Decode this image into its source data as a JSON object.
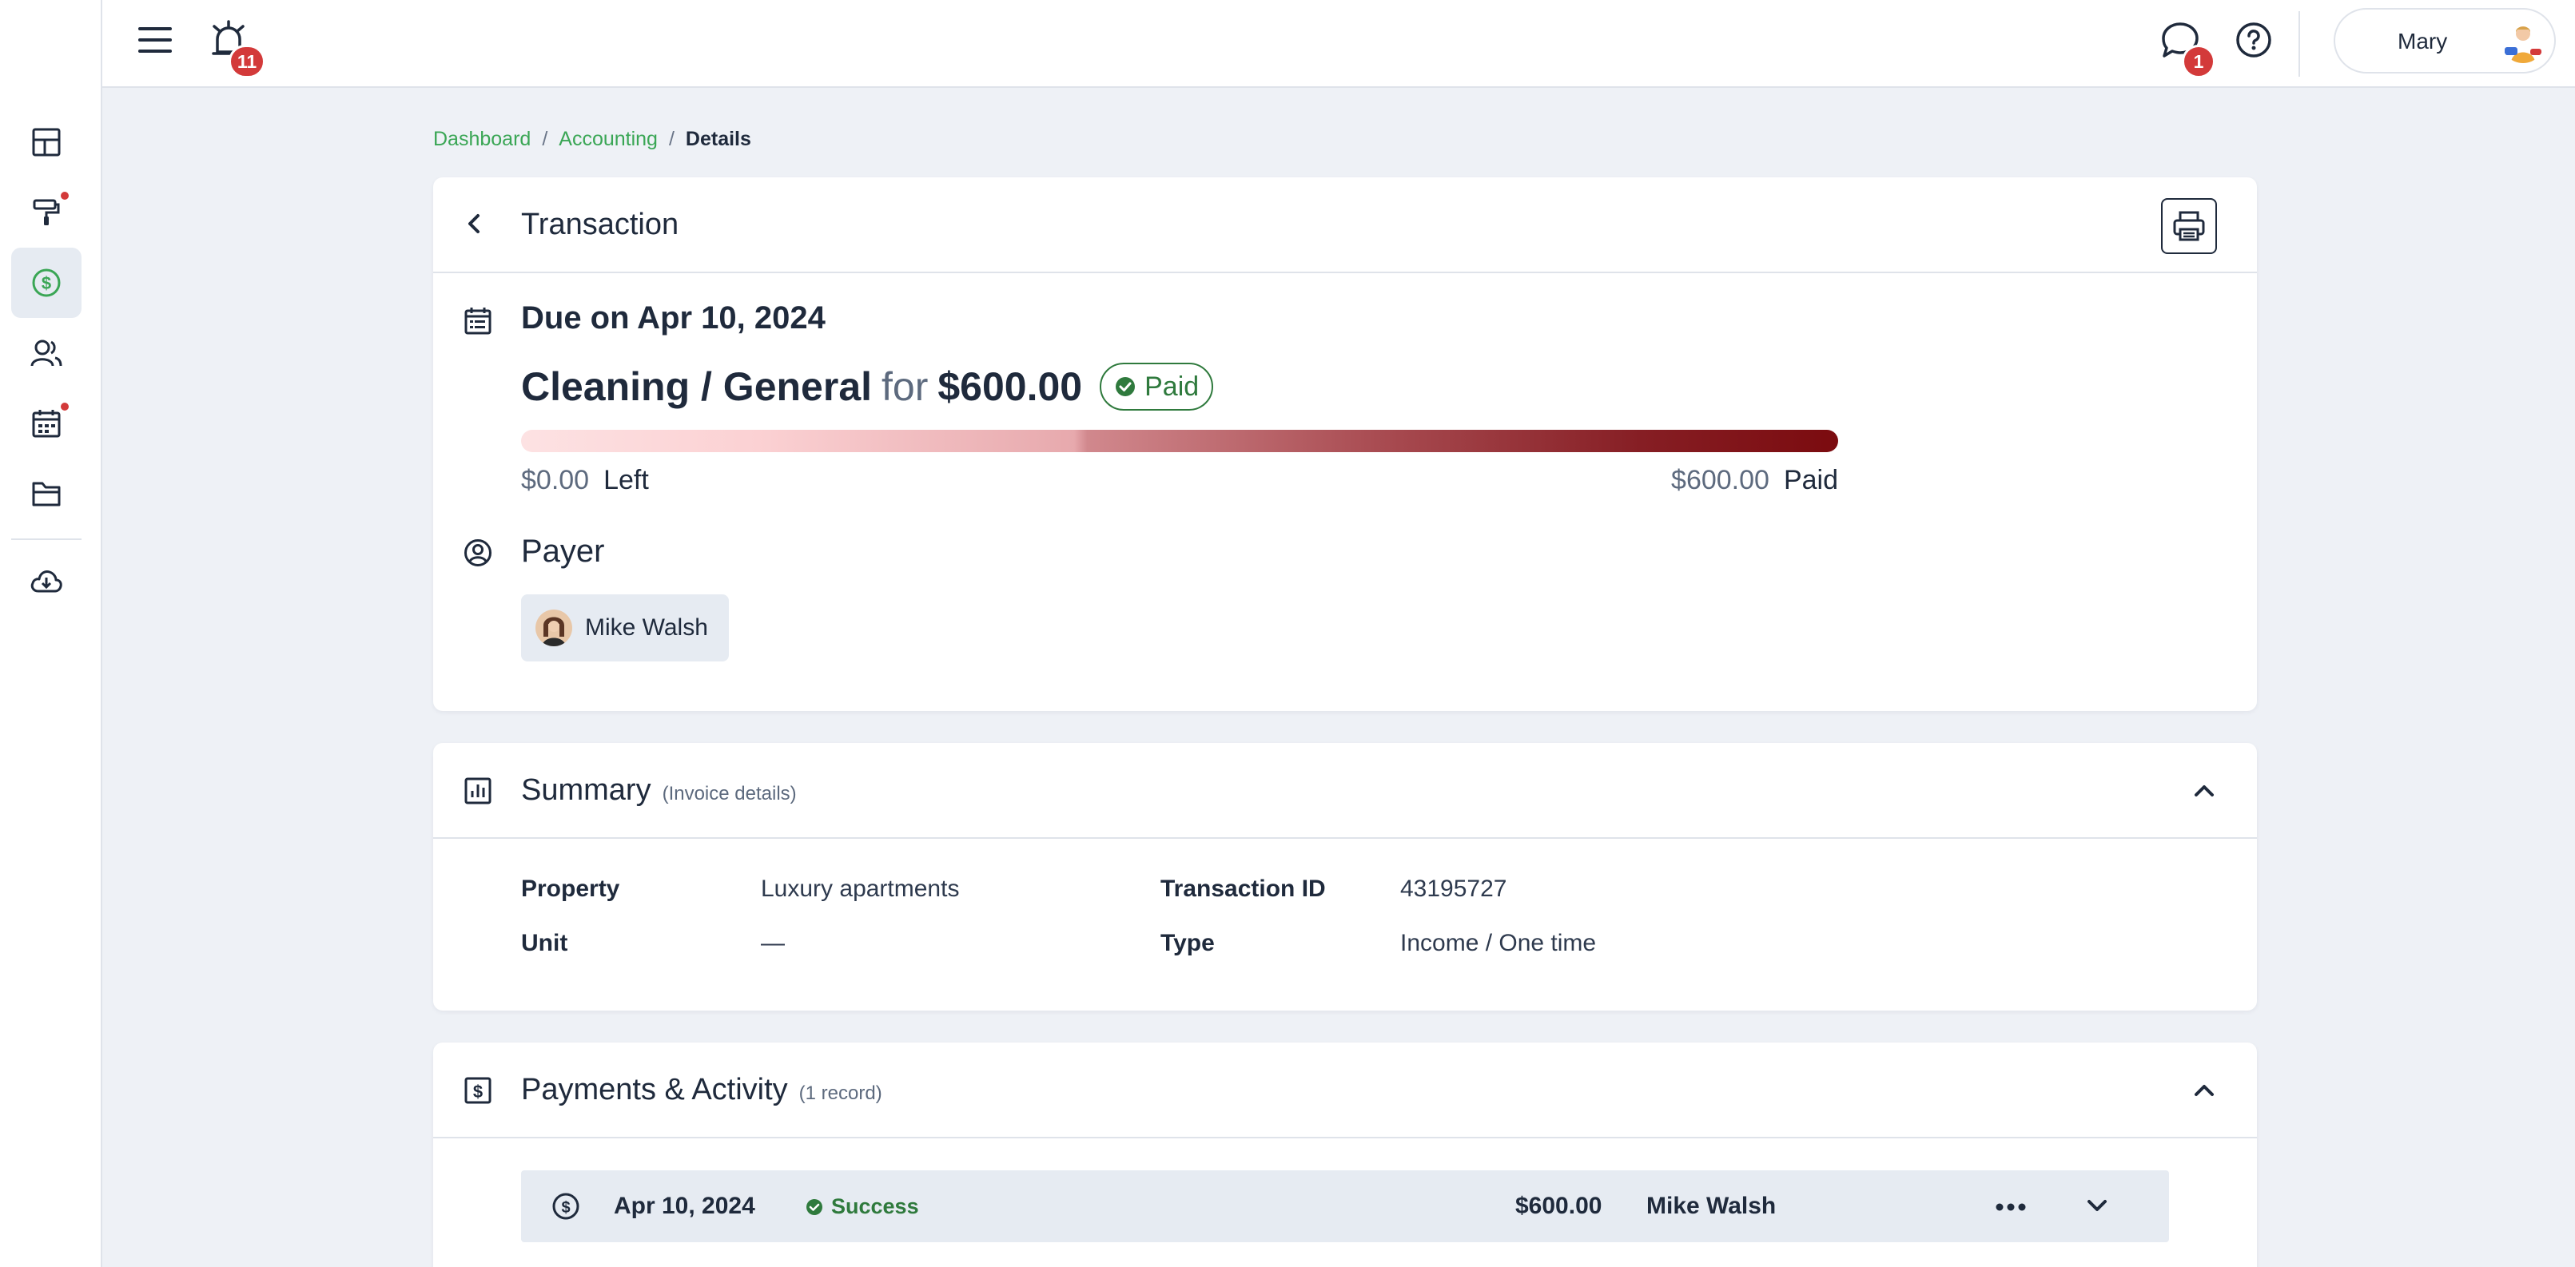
{
  "topbar": {
    "notifications_count": "11",
    "messages_count": "1",
    "user_name": "Mary"
  },
  "breadcrumb": {
    "items": [
      "Dashboard",
      "Accounting"
    ],
    "separator": "/",
    "current": "Details"
  },
  "transaction": {
    "title": "Transaction",
    "due": "Due on Apr 10, 2024",
    "category": "Cleaning / General",
    "for_word": "for",
    "amount": "$600.00",
    "status": "Paid",
    "progress_fraction_paid": 1.0,
    "left_amount": "$0.00",
    "left_label": "Left",
    "paid_amount": "$600.00",
    "paid_label": "Paid",
    "payer_label": "Payer",
    "payer_name": "Mike Walsh"
  },
  "summary": {
    "title": "Summary",
    "subtitle": "(Invoice details)",
    "property_label": "Property",
    "property_value": "Luxury apartments",
    "unit_label": "Unit",
    "unit_value": "—",
    "transaction_id_label": "Transaction ID",
    "transaction_id_value": "43195727",
    "type_label": "Type",
    "type_value": "Income / One time"
  },
  "payments": {
    "title": "Payments & Activity",
    "subtitle": "(1 record)",
    "rows": [
      {
        "date": "Apr 10, 2024",
        "status": "Success",
        "amount": "$600.00",
        "name": "Mike Walsh"
      }
    ]
  },
  "colors": {
    "accent_green": "#3aa655",
    "success_green": "#2f7a3d",
    "badge_red": "#d33a3a",
    "progress_end": "#7b0b0f"
  },
  "icons": [
    "menu-icon",
    "alarm-bell-icon",
    "chat-bubble-icon",
    "help-circle-icon",
    "dashboard-icon",
    "paint-roller-icon",
    "dollar-circle-icon",
    "people-icon",
    "calendar-icon",
    "folder-icon",
    "cloud-download-icon",
    "chevron-left-icon",
    "printer-icon",
    "calendar-list-icon",
    "user-circle-icon",
    "bar-chart-icon",
    "dollar-square-icon",
    "chevron-up-icon",
    "more-horizontal-icon",
    "chevron-down-icon",
    "check-circle-icon"
  ]
}
